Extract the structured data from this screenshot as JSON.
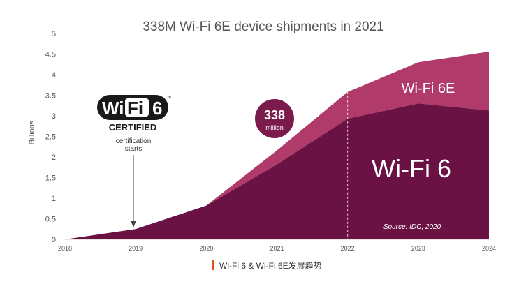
{
  "chart_data": {
    "type": "area",
    "title": "338M Wi-Fi 6E device shipments in 2021",
    "ylabel": "Billions",
    "xlabel": "",
    "x": [
      "2018",
      "2019",
      "2020",
      "2021",
      "2022",
      "2023",
      "2024"
    ],
    "y_ticks": [
      "0",
      "0.5",
      "1",
      "1.5",
      "2",
      "2.5",
      "3",
      "3.5",
      "4",
      "4.5",
      "5"
    ],
    "ylim": [
      0,
      5
    ],
    "stacked": true,
    "grid": false,
    "series": [
      {
        "name": "Wi-Fi 6",
        "values": [
          0,
          0.25,
          0.82,
          1.82,
          2.93,
          3.3,
          3.13
        ]
      },
      {
        "name": "Wi-Fi 6E",
        "values": [
          0,
          0,
          0,
          0.34,
          0.65,
          1.0,
          1.43
        ]
      }
    ],
    "annotations": {
      "callout_value": "338",
      "callout_unit": "million",
      "certification_note": "certification starts",
      "source": "Source: IDC, 2020"
    },
    "colors": {
      "wifi6": "#6b1244",
      "wifi6e": "#b03a6a",
      "callout": "#7a1b4c",
      "axis_text": "#555555",
      "title_text": "#555555"
    }
  },
  "logo": {
    "brand_left": "Wi",
    "brand_mid": "Fi",
    "brand_right": "6",
    "tm": "™",
    "certified": "CERTIFIED"
  },
  "caption": {
    "text": "Wi-Fi 6 & Wi-Fi 6E发展趋势",
    "bar_color": "#e2541f"
  }
}
